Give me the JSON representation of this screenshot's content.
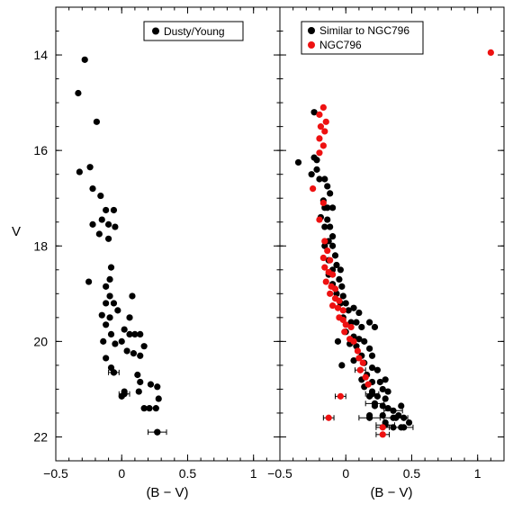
{
  "chart_data": [
    {
      "type": "scatter",
      "panel": "left",
      "xlabel": "(B − V)",
      "ylabel": "V",
      "xlim": [
        -0.5,
        1.2
      ],
      "ylim": [
        22.5,
        13.0
      ],
      "y_inverted": true,
      "xticks": [
        -0.5,
        0,
        0.5,
        1
      ],
      "xtick_labels": [
        "−0.5",
        "0",
        "0.5",
        "1"
      ],
      "yticks": [
        14,
        16,
        18,
        20,
        22
      ],
      "ytick_labels": [
        "14",
        "16",
        "18",
        "20",
        "22"
      ],
      "legend_position": "top-right",
      "series": [
        {
          "name": "Dusty/Young",
          "color": "#000000",
          "points": [
            [
              -0.28,
              14.1
            ],
            [
              -0.33,
              14.8
            ],
            [
              -0.19,
              15.4
            ],
            [
              -0.32,
              16.45
            ],
            [
              -0.24,
              16.35
            ],
            [
              -0.22,
              16.8
            ],
            [
              -0.16,
              16.95
            ],
            [
              -0.12,
              17.25
            ],
            [
              -0.06,
              17.25
            ],
            [
              -0.15,
              17.45
            ],
            [
              -0.22,
              17.55
            ],
            [
              -0.17,
              17.75
            ],
            [
              -0.1,
              17.55
            ],
            [
              -0.1,
              17.85
            ],
            [
              -0.05,
              17.6
            ],
            [
              -0.08,
              18.45
            ],
            [
              -0.25,
              18.75
            ],
            [
              -0.09,
              18.7
            ],
            [
              -0.12,
              18.85
            ],
            [
              -0.09,
              19.05
            ],
            [
              -0.12,
              19.2
            ],
            [
              -0.06,
              19.2
            ],
            [
              0.08,
              19.05
            ],
            [
              -0.15,
              19.45
            ],
            [
              -0.09,
              19.5
            ],
            [
              -0.03,
              19.35
            ],
            [
              -0.12,
              19.65
            ],
            [
              -0.08,
              19.85
            ],
            [
              0.06,
              19.5
            ],
            [
              0.02,
              19.75
            ],
            [
              -0.14,
              20.0
            ],
            [
              0.06,
              19.85
            ],
            [
              0.1,
              19.85
            ],
            [
              0.14,
              19.85
            ],
            [
              0.0,
              20.0
            ],
            [
              -0.05,
              20.05
            ],
            [
              0.04,
              20.2
            ],
            [
              0.09,
              20.25
            ],
            [
              0.17,
              20.1
            ],
            [
              0.14,
              20.3
            ],
            [
              -0.12,
              20.35
            ],
            [
              -0.08,
              20.55
            ],
            [
              -0.06,
              20.65
            ],
            [
              0.12,
              20.7
            ],
            [
              0.14,
              20.85
            ],
            [
              0.02,
              21.05
            ],
            [
              0.13,
              21.05
            ],
            [
              0.22,
              20.9
            ],
            [
              0.0,
              21.15
            ],
            [
              0.27,
              20.95
            ],
            [
              0.28,
              21.2
            ],
            [
              0.17,
              21.4
            ],
            [
              0.21,
              21.4
            ],
            [
              0.26,
              21.4
            ],
            [
              0.27,
              21.9
            ]
          ],
          "error_points": [
            [
              0.02,
              21.1,
              0.04
            ],
            [
              -0.06,
              20.65,
              0.04
            ],
            [
              0.27,
              21.9,
              0.07
            ]
          ]
        }
      ]
    },
    {
      "type": "scatter",
      "panel": "right",
      "xlabel": "(B − V)",
      "xlim": [
        -0.5,
        1.2
      ],
      "ylim": [
        22.5,
        13.0
      ],
      "y_inverted": true,
      "xticks": [
        -0.5,
        0,
        0.5,
        1
      ],
      "xtick_labels": [
        "−0.5",
        "0",
        "0.5",
        "1"
      ],
      "yticks": [
        14,
        16,
        18,
        20,
        22
      ],
      "legend_position": "top-left",
      "series": [
        {
          "name": "Similar to NGC796",
          "color": "#000000",
          "points": [
            [
              -0.24,
              15.2
            ],
            [
              -0.36,
              16.25
            ],
            [
              -0.24,
              16.15
            ],
            [
              -0.22,
              16.2
            ],
            [
              -0.26,
              16.5
            ],
            [
              -0.22,
              16.4
            ],
            [
              -0.2,
              16.6
            ],
            [
              -0.16,
              16.6
            ],
            [
              -0.14,
              16.75
            ],
            [
              -0.12,
              16.9
            ],
            [
              -0.17,
              17.05
            ],
            [
              -0.16,
              17.2
            ],
            [
              -0.14,
              17.2
            ],
            [
              -0.1,
              17.2
            ],
            [
              -0.19,
              17.4
            ],
            [
              -0.14,
              17.45
            ],
            [
              -0.12,
              17.6
            ],
            [
              -0.16,
              17.6
            ],
            [
              -0.1,
              17.8
            ],
            [
              -0.13,
              17.9
            ],
            [
              -0.1,
              18.0
            ],
            [
              -0.16,
              18.0
            ],
            [
              -0.08,
              18.2
            ],
            [
              -0.13,
              18.3
            ],
            [
              -0.07,
              18.4
            ],
            [
              -0.1,
              18.5
            ],
            [
              -0.13,
              18.6
            ],
            [
              -0.04,
              18.5
            ],
            [
              -0.05,
              18.7
            ],
            [
              -0.1,
              18.8
            ],
            [
              -0.03,
              18.85
            ],
            [
              -0.07,
              19.0
            ],
            [
              -0.02,
              19.05
            ],
            [
              0.0,
              19.2
            ],
            [
              -0.04,
              19.2
            ],
            [
              0.02,
              19.35
            ],
            [
              0.06,
              19.3
            ],
            [
              0.1,
              19.4
            ],
            [
              -0.02,
              19.5
            ],
            [
              0.04,
              19.6
            ],
            [
              0.08,
              19.6
            ],
            [
              0.12,
              19.7
            ],
            [
              0.18,
              19.6
            ],
            [
              0.22,
              19.7
            ],
            [
              0.0,
              19.8
            ],
            [
              0.06,
              19.9
            ],
            [
              0.1,
              19.95
            ],
            [
              0.14,
              20.0
            ],
            [
              -0.06,
              20.0
            ],
            [
              0.03,
              20.05
            ],
            [
              0.08,
              20.1
            ],
            [
              0.18,
              20.15
            ],
            [
              0.2,
              20.3
            ],
            [
              0.12,
              20.3
            ],
            [
              0.06,
              20.4
            ],
            [
              0.14,
              20.45
            ],
            [
              0.2,
              20.55
            ],
            [
              0.24,
              20.6
            ],
            [
              0.16,
              20.7
            ],
            [
              0.2,
              20.85
            ],
            [
              0.26,
              20.85
            ],
            [
              0.3,
              20.8
            ],
            [
              0.14,
              20.95
            ],
            [
              0.2,
              21.05
            ],
            [
              0.28,
              21.0
            ],
            [
              0.32,
              21.05
            ],
            [
              0.18,
              21.15
            ],
            [
              0.24,
              21.15
            ],
            [
              0.3,
              21.2
            ],
            [
              0.22,
              21.35
            ],
            [
              0.28,
              21.35
            ],
            [
              0.32,
              21.4
            ],
            [
              0.42,
              21.35
            ],
            [
              0.18,
              21.55
            ],
            [
              0.28,
              21.55
            ],
            [
              0.36,
              21.6
            ],
            [
              0.4,
              21.55
            ],
            [
              0.44,
              21.6
            ],
            [
              0.3,
              21.7
            ],
            [
              0.36,
              21.8
            ],
            [
              0.42,
              21.8
            ],
            [
              0.48,
              21.7
            ],
            [
              -0.03,
              20.5
            ],
            [
              0.12,
              20.8
            ]
          ],
          "error_points": [
            [
              0.22,
              21.3,
              0.07
            ],
            [
              0.36,
              21.45,
              0.07
            ],
            [
              0.18,
              21.6,
              0.08
            ],
            [
              0.38,
              21.6,
              0.09
            ],
            [
              0.3,
              21.75,
              0.07
            ],
            [
              0.44,
              21.8,
              0.07
            ],
            [
              0.2,
              21.1,
              0.05
            ]
          ]
        },
        {
          "name": "NGC796",
          "color": "#ee1111",
          "points": [
            [
              1.1,
              13.95
            ],
            [
              -0.17,
              15.1
            ],
            [
              -0.2,
              15.25
            ],
            [
              -0.15,
              15.4
            ],
            [
              -0.19,
              15.5
            ],
            [
              -0.16,
              15.6
            ],
            [
              -0.2,
              15.75
            ],
            [
              -0.17,
              15.9
            ],
            [
              -0.2,
              16.05
            ],
            [
              -0.25,
              16.8
            ],
            [
              -0.17,
              17.1
            ],
            [
              -0.2,
              17.45
            ],
            [
              -0.16,
              17.9
            ],
            [
              -0.14,
              18.1
            ],
            [
              -0.17,
              18.25
            ],
            [
              -0.12,
              18.3
            ],
            [
              -0.16,
              18.45
            ],
            [
              -0.13,
              18.55
            ],
            [
              -0.1,
              18.6
            ],
            [
              -0.15,
              18.75
            ],
            [
              -0.11,
              18.85
            ],
            [
              -0.08,
              18.9
            ],
            [
              -0.12,
              19.0
            ],
            [
              -0.08,
              19.1
            ],
            [
              -0.05,
              19.15
            ],
            [
              -0.1,
              19.25
            ],
            [
              -0.06,
              19.3
            ],
            [
              -0.02,
              19.35
            ],
            [
              -0.05,
              19.5
            ],
            [
              -0.02,
              19.55
            ],
            [
              0.0,
              19.65
            ],
            [
              0.04,
              19.7
            ],
            [
              -0.01,
              19.8
            ],
            [
              0.03,
              19.95
            ],
            [
              0.06,
              20.0
            ],
            [
              0.09,
              20.2
            ],
            [
              0.1,
              20.35
            ],
            [
              0.13,
              20.45
            ],
            [
              0.11,
              20.6
            ],
            [
              0.15,
              20.75
            ],
            [
              0.17,
              20.9
            ]
          ],
          "error_points": [
            [
              0.11,
              20.6,
              0.04
            ],
            [
              -0.04,
              21.15,
              0.04
            ],
            [
              -0.13,
              21.6,
              0.04
            ],
            [
              0.28,
              21.8,
              0.05
            ],
            [
              0.28,
              21.95,
              0.05
            ]
          ]
        }
      ]
    }
  ]
}
